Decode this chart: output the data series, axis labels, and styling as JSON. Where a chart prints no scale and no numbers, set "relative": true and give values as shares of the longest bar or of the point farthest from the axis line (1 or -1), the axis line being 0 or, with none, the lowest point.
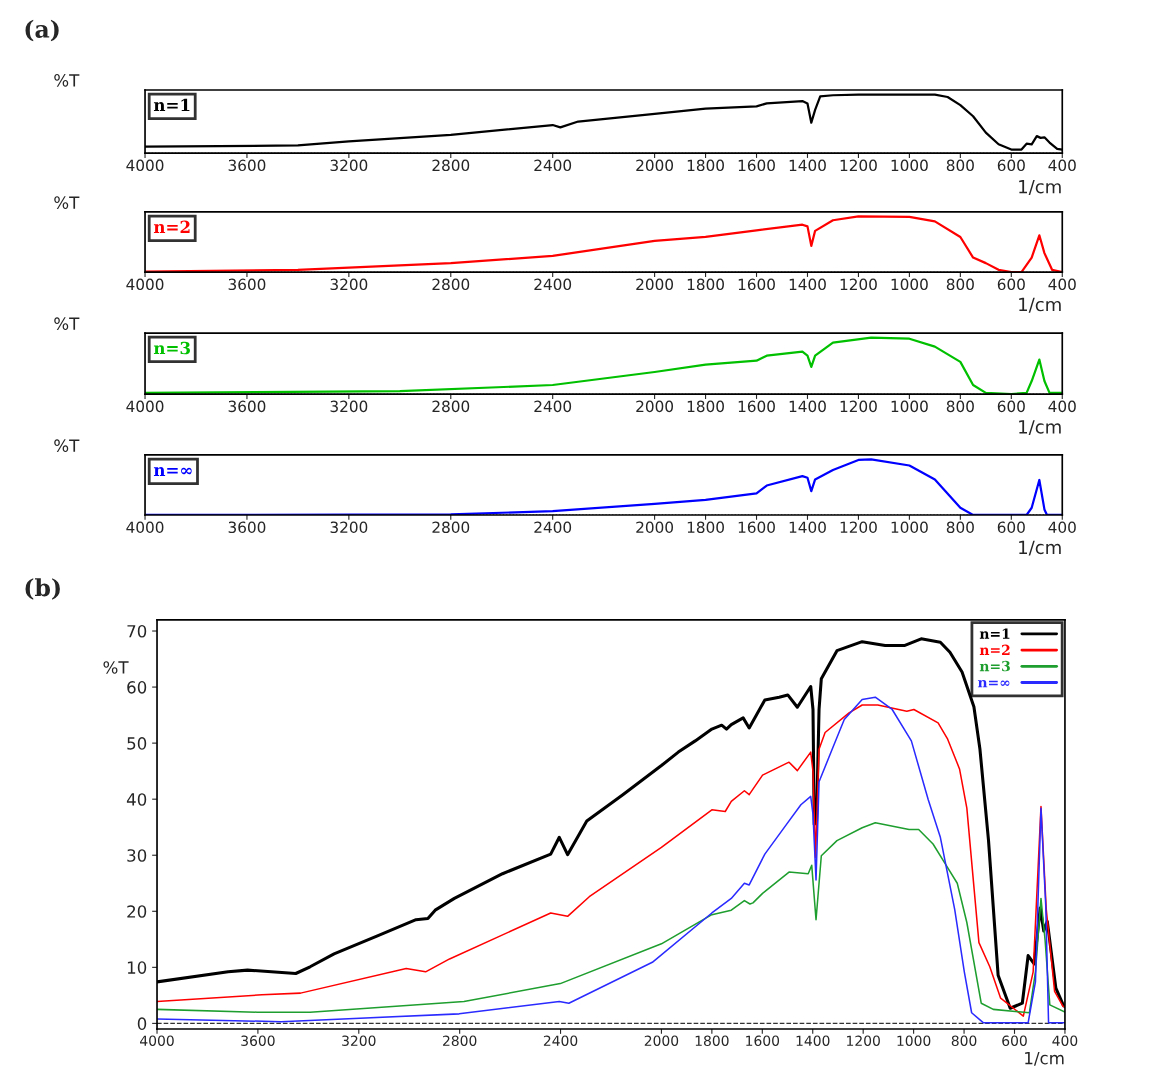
{
  "chart_data": [
    {
      "type": "line",
      "title": "(a)",
      "relative": true,
      "xlabel": "1/cm",
      "ylabel": "%T",
      "legend": "top left",
      "line_style": "solid",
      "xlim": [
        4000,
        400
      ],
      "xticks": [
        4000,
        3600,
        3200,
        2800,
        2400,
        2000,
        1800,
        1600,
        1400,
        1200,
        1000,
        800,
        600,
        400
      ],
      "ref_lines": [
        {
          "axis": "y",
          "value": 0,
          "line_style": "dotted",
          "color": "#555555"
        }
      ],
      "series": [
        {
          "name": "n=1",
          "color": "#000000",
          "x": [
            4000,
            3400,
            3200,
            2800,
            2400,
            2370,
            2300,
            2000,
            1800,
            1600,
            1560,
            1420,
            1400,
            1385,
            1370,
            1350,
            1300,
            1200,
            1000,
            900,
            850,
            800,
            750,
            700,
            650,
            600,
            560,
            540,
            520,
            500,
            485,
            470,
            450,
            420,
            400
          ],
          "values": [
            0.11,
            0.13,
            0.2,
            0.31,
            0.48,
            0.44,
            0.54,
            0.67,
            0.76,
            0.8,
            0.85,
            0.89,
            0.85,
            0.52,
            0.74,
            0.97,
            0.99,
            1,
            1,
            1,
            0.96,
            0.82,
            0.63,
            0.35,
            0.15,
            0.06,
            0.06,
            0.16,
            0.15,
            0.29,
            0.26,
            0.27,
            0.18,
            0.07,
            0.06
          ]
        }
      ]
    },
    {
      "type": "line",
      "relative": true,
      "xlabel": "1/cm",
      "ylabel": "%T",
      "legend": "top left",
      "line_style": "solid",
      "xlim": [
        4000,
        400
      ],
      "xticks": [
        4000,
        3600,
        3200,
        2800,
        2400,
        2000,
        1800,
        1600,
        1400,
        1200,
        1000,
        800,
        600,
        400
      ],
      "ref_lines": [
        {
          "axis": "y",
          "value": 0,
          "line_style": "dotted",
          "color": "#555555"
        }
      ],
      "series": [
        {
          "name": "n=2",
          "color": "#ff0000",
          "x": [
            4000,
            3400,
            2800,
            2400,
            2000,
            1800,
            1600,
            1420,
            1400,
            1385,
            1370,
            1300,
            1200,
            1000,
            900,
            800,
            750,
            700,
            650,
            600,
            560,
            520,
            490,
            470,
            440,
            400
          ],
          "values": [
            0.01,
            0.04,
            0.16,
            0.29,
            0.56,
            0.63,
            0.75,
            0.85,
            0.82,
            0.47,
            0.74,
            0.93,
            1,
            0.99,
            0.91,
            0.63,
            0.26,
            0.16,
            0.04,
            0,
            0,
            0.26,
            0.66,
            0.34,
            0.04,
            0
          ]
        }
      ]
    },
    {
      "type": "line",
      "relative": true,
      "xlabel": "1/cm",
      "ylabel": "%T",
      "legend": "top left",
      "line_style": "solid",
      "xlim": [
        4000,
        400
      ],
      "xticks": [
        4000,
        3600,
        3200,
        2800,
        2400,
        2000,
        1800,
        1600,
        1400,
        1200,
        1000,
        800,
        600,
        400
      ],
      "ref_lines": [
        {
          "axis": "y",
          "value": 0,
          "line_style": "dotted",
          "color": "#555555"
        }
      ],
      "series": [
        {
          "name": "n=3",
          "color": "#00c000",
          "x": [
            4000,
            3000,
            2400,
            2000,
            1800,
            1600,
            1560,
            1420,
            1400,
            1385,
            1370,
            1300,
            1150,
            1000,
            900,
            800,
            750,
            700,
            600,
            540,
            520,
            490,
            470,
            450,
            400
          ],
          "values": [
            0.02,
            0.05,
            0.16,
            0.39,
            0.52,
            0.59,
            0.68,
            0.75,
            0.68,
            0.48,
            0.68,
            0.91,
            1,
            0.98,
            0.84,
            0.57,
            0.16,
            0.02,
            0,
            0.02,
            0.23,
            0.61,
            0.23,
            0.02,
            0.02
          ]
        }
      ]
    },
    {
      "type": "line",
      "relative": true,
      "xlabel": "1/cm",
      "ylabel": "%T",
      "legend": "top left",
      "line_style": "solid",
      "xlim": [
        4000,
        400
      ],
      "xticks": [
        4000,
        3600,
        3200,
        2800,
        2400,
        2000,
        1800,
        1600,
        1400,
        1200,
        1000,
        800,
        600,
        400
      ],
      "ref_lines": [
        {
          "axis": "y",
          "value": 0,
          "line_style": "dotted",
          "color": "#555555"
        }
      ],
      "series": [
        {
          "name": "n=∞",
          "color": "#0000ff",
          "x": [
            4000,
            2800,
            2400,
            2000,
            1800,
            1600,
            1560,
            1420,
            1400,
            1385,
            1370,
            1300,
            1200,
            1150,
            1000,
            900,
            800,
            750,
            540,
            520,
            490,
            470,
            460,
            400
          ],
          "values": [
            0,
            0.01,
            0.07,
            0.2,
            0.27,
            0.39,
            0.53,
            0.7,
            0.67,
            0.43,
            0.64,
            0.81,
            0.99,
            1,
            0.89,
            0.64,
            0.13,
            0,
            0,
            0.13,
            0.63,
            0.1,
            0,
            0
          ]
        }
      ]
    },
    {
      "type": "line",
      "title": "(b)",
      "xlabel": "1/cm",
      "ylabel": "%T",
      "legend": "top right",
      "line_style": "solid",
      "xlim": [
        4000,
        400
      ],
      "xticks": [
        4000,
        3600,
        3200,
        2800,
        2400,
        2000,
        1800,
        1600,
        1400,
        1200,
        1000,
        800,
        600,
        400
      ],
      "ylim": [
        -1,
        72
      ],
      "yticks": [
        0,
        10,
        20,
        30,
        40,
        50,
        60,
        70
      ],
      "ref_lines": [
        {
          "axis": "y",
          "value": 0,
          "line_style": "dashed",
          "color": "#333333"
        }
      ],
      "series": [
        {
          "name": "n=1",
          "color": "#000000",
          "x": [
            4000,
            3718,
            3641,
            3450,
            3393,
            3298,
            3126,
            2973,
            2926,
            2897,
            2821,
            2630,
            2439,
            2405,
            2372,
            2296,
            2153,
            2000,
            1933,
            1866,
            1800,
            1761,
            1742,
            1723,
            1676,
            1652,
            1590,
            1533,
            1499,
            1461,
            1408,
            1399,
            1394,
            1385,
            1375,
            1366,
            1304,
            1204,
            1113,
            1037,
            970,
            894,
            856,
            808,
            761,
            737,
            703,
            665,
            617,
            569,
            546,
            522,
            498,
            484,
            470,
            436,
            407,
            400
          ],
          "values": [
            7.4,
            9.2,
            9.5,
            8.9,
            10.1,
            12.4,
            15.6,
            18.5,
            18.7,
            20.2,
            22.3,
            26.7,
            30.2,
            33.2,
            30.1,
            36.1,
            40.8,
            46.0,
            48.4,
            50.4,
            52.5,
            53.2,
            52.5,
            53.3,
            54.5,
            52.7,
            57.7,
            58.2,
            58.6,
            56.4,
            60.1,
            56.0,
            35.5,
            36.1,
            56.0,
            61.5,
            66.5,
            68.1,
            67.4,
            67.4,
            68.6,
            68.0,
            66.2,
            62.7,
            56.5,
            48.9,
            32.6,
            8.6,
            2.7,
            3.6,
            12.1,
            10.6,
            20.6,
            16.5,
            18.2,
            6.3,
            3.3,
            3.0
          ]
        },
        {
          "name": "n=2",
          "color": "#ff0000",
          "x": [
            4000,
            3584,
            3431,
            3012,
            2935,
            2840,
            2439,
            2372,
            2286,
            2000,
            1800,
            1747,
            1723,
            1671,
            1652,
            1599,
            1494,
            1461,
            1408,
            1399,
            1389,
            1375,
            1351,
            1256,
            1204,
            1142,
            1027,
            999,
            903,
            865,
            818,
            789,
            741,
            698,
            655,
            565,
            526,
            495,
            474,
            441,
            407,
            400
          ],
          "values": [
            3.9,
            5.1,
            5.4,
            9.8,
            9.2,
            11.5,
            19.7,
            19.1,
            22.6,
            31.4,
            38.1,
            37.8,
            39.6,
            41.5,
            40.8,
            44.3,
            46.6,
            45.1,
            48.4,
            44.9,
            29.6,
            48.9,
            51.9,
            55.4,
            56.8,
            56.8,
            55.7,
            56.0,
            53.6,
            50.7,
            45.4,
            38.4,
            14.4,
            10.1,
            4.5,
            1.3,
            9.2,
            38.7,
            20.3,
            5.7,
            3.0,
            3.0
          ]
        },
        {
          "name": "n=3",
          "color": "#1e9e2e",
          "x": [
            4000,
            3603,
            3393,
            2783,
            2401,
            2000,
            1800,
            1723,
            1671,
            1649,
            1637,
            1599,
            1494,
            1418,
            1404,
            1387,
            1366,
            1304,
            1204,
            1152,
            1018,
            980,
            923,
            875,
            827,
            789,
            732,
            684,
            541,
            517,
            495,
            479,
            460,
            400
          ],
          "values": [
            2.5,
            2.0,
            2.0,
            3.9,
            7.1,
            14.2,
            19.4,
            20.2,
            21.9,
            21.3,
            21.5,
            23.2,
            27.0,
            26.7,
            28.2,
            18.5,
            29.9,
            32.6,
            34.9,
            35.8,
            34.6,
            34.6,
            32.0,
            28.5,
            25.0,
            18.0,
            3.6,
            2.5,
            1.9,
            9.2,
            22.3,
            15.0,
            3.3,
            2.0
          ]
        },
        {
          "name": "n=∞",
          "color": "#2a2aff",
          "x": [
            4000,
            3508,
            2802,
            2405,
            2367,
            2036,
            1800,
            1723,
            1671,
            1652,
            1590,
            1504,
            1447,
            1408,
            1399,
            1387,
            1375,
            1323,
            1275,
            1204,
            1152,
            1085,
            1009,
            942,
            894,
            837,
            799,
            770,
            723,
            546,
            517,
            495,
            476,
            465,
            400
          ],
          "values": [
            0.8,
            0.3,
            1.7,
            3.9,
            3.6,
            10.9,
            19.7,
            22.3,
            25.0,
            24.7,
            30.2,
            35.5,
            39.0,
            40.5,
            37.3,
            25.6,
            43.1,
            48.9,
            54.2,
            57.8,
            58.2,
            56.0,
            50.4,
            39.9,
            33.2,
            20.3,
            9.2,
            1.9,
            0.1,
            0.1,
            7.4,
            38.4,
            20.9,
            0.1,
            0.1
          ]
        }
      ]
    }
  ]
}
